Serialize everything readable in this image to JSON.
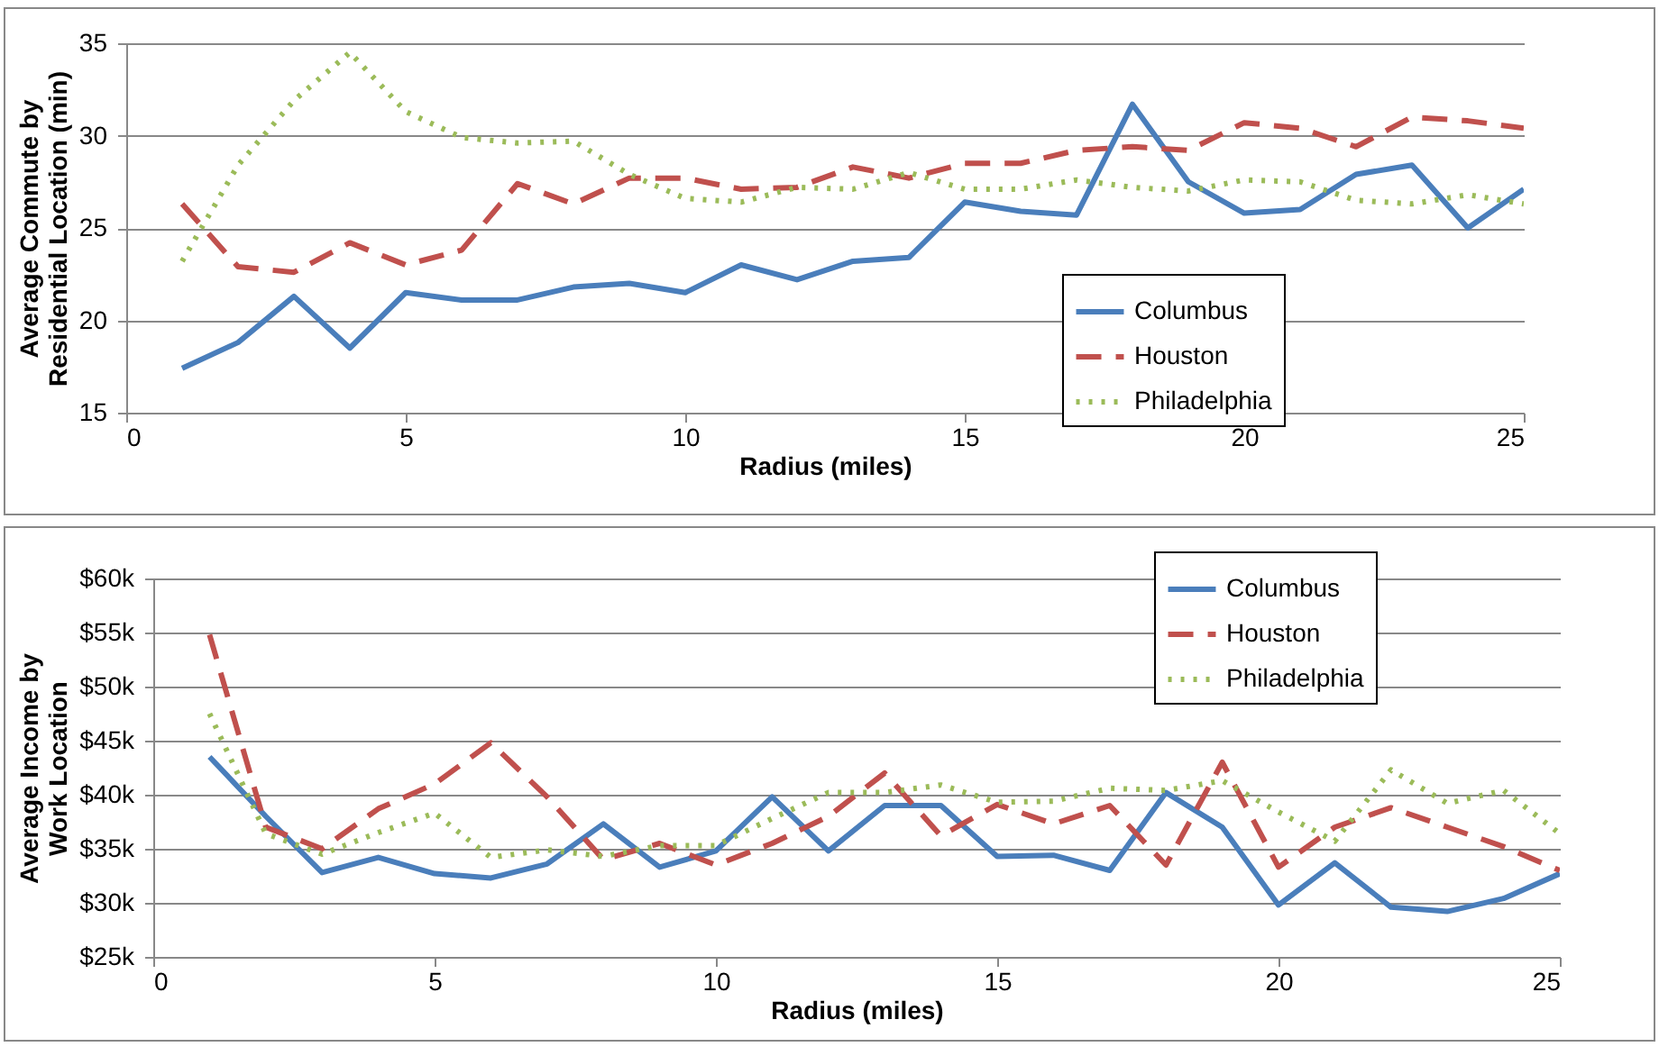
{
  "chart_data": [
    {
      "type": "line",
      "xlabel": "Radius (miles)",
      "ylabel": "Average Commute by Residential Location (min)",
      "x": [
        1,
        2,
        3,
        4,
        5,
        6,
        7,
        8,
        9,
        10,
        11,
        12,
        13,
        14,
        15,
        16,
        17,
        18,
        19,
        20,
        21,
        22,
        23,
        24,
        25
      ],
      "xlim": [
        0,
        25
      ],
      "xticks": [
        0,
        5,
        10,
        15,
        20,
        25
      ],
      "ylim": [
        15,
        35
      ],
      "yticks": [
        15,
        20,
        25,
        30,
        35
      ],
      "grid": "y",
      "legend": "bottom right",
      "marker": "none",
      "series": [
        {
          "name": "Columbus",
          "color": "#4a7ebb",
          "line_style": "solid",
          "values": [
            17.4,
            18.8,
            21.3,
            18.5,
            21.5,
            21.1,
            21.1,
            21.8,
            22,
            21.5,
            23,
            22.2,
            23.2,
            23.4,
            26.4,
            25.9,
            25.7,
            31.7,
            27.5,
            25.8,
            26,
            27.9,
            28.4,
            25,
            27.1
          ]
        },
        {
          "name": "Houston",
          "color": "#c0504d",
          "line_style": "dashed",
          "values": [
            26.3,
            22.9,
            22.6,
            24.2,
            23,
            23.8,
            27.4,
            26.3,
            27.7,
            27.7,
            27.1,
            27.2,
            28.3,
            27.7,
            28.5,
            28.5,
            29.2,
            29.4,
            29.2,
            30.7,
            30.4,
            29.4,
            31,
            30.8,
            30.4
          ]
        },
        {
          "name": "Philadelphia",
          "color": "#9bbb59",
          "line_style": "dotted",
          "values": [
            23.2,
            28.4,
            31.9,
            34.5,
            31.3,
            29.9,
            29.6,
            29.7,
            27.9,
            26.6,
            26.4,
            27.2,
            27.1,
            28,
            27.1,
            27.1,
            27.6,
            27.2,
            27,
            27.6,
            27.5,
            26.5,
            26.3,
            26.8,
            26.3
          ]
        }
      ]
    },
    {
      "type": "line",
      "xlabel": "Radius (miles)",
      "ylabel": "Average Income by Work Location",
      "x": [
        1,
        2,
        3,
        4,
        5,
        6,
        7,
        8,
        9,
        10,
        11,
        12,
        13,
        14,
        15,
        16,
        17,
        18,
        19,
        20,
        21,
        22,
        23,
        24,
        25
      ],
      "xlim": [
        0,
        25
      ],
      "xticks": [
        0,
        5,
        10,
        15,
        20,
        25
      ],
      "ylim": [
        25,
        60
      ],
      "yticks": [
        {
          "value": 25,
          "label": "$25k"
        },
        {
          "value": 30,
          "label": "$30k"
        },
        {
          "value": 35,
          "label": "$35k"
        },
        {
          "value": 40,
          "label": "$40k"
        },
        {
          "value": 45,
          "label": "$45k"
        },
        {
          "value": 50,
          "label": "$50k"
        },
        {
          "value": 55,
          "label": "$55k"
        },
        {
          "value": 60,
          "label": "$60k"
        }
      ],
      "grid": "y",
      "legend": "top right",
      "marker": "none",
      "series": [
        {
          "name": "Columbus",
          "color": "#4a7ebb",
          "line_style": "solid",
          "values": [
            43.5,
            38,
            32.8,
            34.2,
            32.7,
            32.3,
            33.6,
            37.3,
            33.3,
            34.8,
            39.8,
            34.8,
            39,
            39,
            34.3,
            34.4,
            33,
            40.2,
            37,
            29.8,
            33.7,
            29.6,
            29.2,
            30.4,
            32.7
          ]
        },
        {
          "name": "Houston",
          "color": "#c0504d",
          "line_style": "dashed",
          "values": [
            54.8,
            37,
            35,
            38.7,
            41,
            44.8,
            39.8,
            34,
            35.5,
            33.5,
            35.5,
            38,
            42,
            36.2,
            39.1,
            37.3,
            39,
            33.5,
            43,
            33.3,
            37,
            38.8,
            37,
            35.2,
            33
          ]
        },
        {
          "name": "Philadelphia",
          "color": "#9bbb59",
          "line_style": "dotted",
          "values": [
            47.5,
            36.4,
            34.5,
            36.5,
            38.3,
            34.2,
            34.9,
            34.3,
            35.3,
            35.3,
            37.8,
            40.2,
            40.2,
            40.9,
            39.3,
            39.4,
            40.6,
            40.4,
            41.3,
            38.4,
            35.7,
            42.3,
            39.2,
            40.4,
            36.4
          ]
        }
      ]
    }
  ]
}
